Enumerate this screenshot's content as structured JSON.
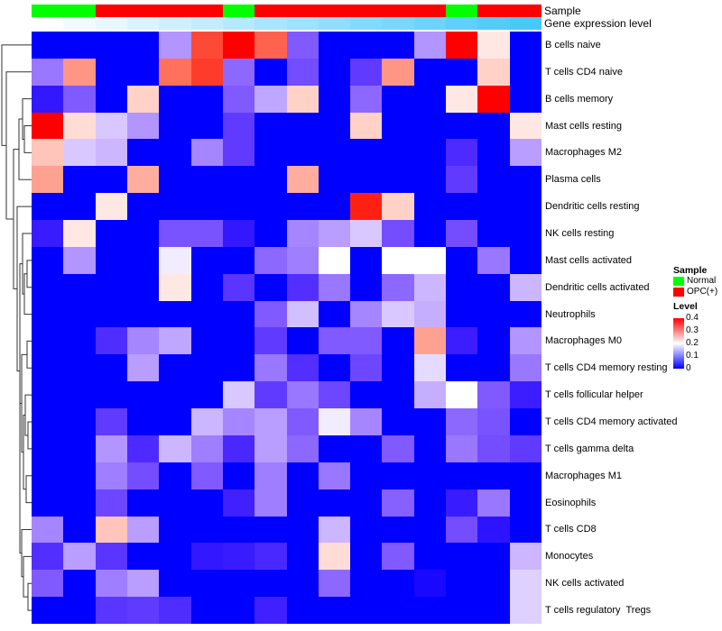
{
  "chart_data": {
    "type": "heatmap",
    "annotations": {
      "sample": {
        "label": "Sample",
        "values": [
          "Normal",
          "Normal",
          "OPC(+)",
          "OPC(+)",
          "OPC(+)",
          "OPC(+)",
          "Normal",
          "OPC(+)",
          "OPC(+)",
          "OPC(+)",
          "OPC(+)",
          "OPC(+)",
          "OPC(+)",
          "Normal",
          "OPC(+)",
          "OPC(+)"
        ]
      },
      "gene_expression": {
        "label": "Gene expression level",
        "relative_levels": [
          0,
          0.07,
          0.13,
          0.2,
          0.27,
          0.33,
          0.4,
          0.47,
          0.53,
          0.6,
          0.67,
          0.73,
          0.8,
          0.87,
          0.93,
          1.0
        ]
      }
    },
    "rows": [
      "B cells naive",
      "T cells CD4 naive",
      "B cells memory",
      "Mast cells resting",
      "Macrophages M2",
      "Plasma cells",
      "Dendritic cells resting",
      "NK cells resting",
      "Mast cells activated",
      "Dendritic cells activated",
      "Neutrophils",
      "Macrophages M0",
      "T cells CD4 memory resting",
      "T cells follicular helper",
      "T cells CD4 memory activated",
      "T cells gamma delta",
      "Macrophages M1",
      "Eosinophils",
      "T cells CD8",
      "Monocytes",
      "NK cells activated",
      "T cells regulatory  Tregs"
    ],
    "values": [
      [
        0,
        0,
        0,
        0,
        0.14,
        0.35,
        0.4,
        0.33,
        0.1,
        0,
        0,
        0,
        0.14,
        0.4,
        0.22,
        0
      ],
      [
        0.12,
        0.29,
        0,
        0,
        0.32,
        0.36,
        0.11,
        0,
        0.09,
        0,
        0.075,
        0.29,
        0,
        0,
        0.24,
        0
      ],
      [
        0.04,
        0.1,
        0,
        0.24,
        0,
        0,
        0.1,
        0.15,
        0.24,
        0,
        0.11,
        0,
        0,
        0.22,
        0.4,
        0
      ],
      [
        0.4,
        0.23,
        0.17,
        0.14,
        0,
        0,
        0.075,
        0,
        0,
        0,
        0.24,
        0,
        0,
        0,
        0,
        0.22
      ],
      [
        0.25,
        0.17,
        0.16,
        0,
        0,
        0.13,
        0.075,
        0,
        0,
        0,
        0,
        0,
        0,
        0.06,
        0,
        0.145
      ],
      [
        0.28,
        0,
        0,
        0.27,
        0,
        0,
        0,
        0,
        0.27,
        0,
        0,
        0,
        0,
        0.075,
        0,
        0
      ],
      [
        0,
        0,
        0.22,
        0,
        0,
        0,
        0,
        0,
        0,
        0,
        0.38,
        0.24,
        0,
        0,
        0,
        0
      ],
      [
        0.045,
        0.22,
        0,
        0,
        0.095,
        0.095,
        0.04,
        0,
        0.13,
        0.145,
        0.17,
        0.09,
        0,
        0.09,
        0,
        0
      ],
      [
        0,
        0.14,
        0,
        0,
        0.19,
        0,
        0,
        0.11,
        0.125,
        0.2,
        0,
        0.2,
        0.2,
        0,
        0.12,
        0
      ],
      [
        0,
        0,
        0,
        0,
        0.22,
        0,
        0.07,
        0,
        0.065,
        0.12,
        0,
        0.11,
        0.16,
        0,
        0,
        0.16
      ],
      [
        0,
        0,
        0,
        0,
        0,
        0,
        0,
        0.1,
        0.165,
        0,
        0.13,
        0.17,
        0.155,
        0,
        0,
        0
      ],
      [
        0,
        0,
        0.063,
        0.13,
        0.15,
        0,
        0,
        0.075,
        0,
        0.1,
        0.1,
        0,
        0.28,
        0.047,
        0,
        0.14
      ],
      [
        0,
        0,
        0,
        0.145,
        0,
        0,
        0,
        0.12,
        0.065,
        0,
        0.085,
        0,
        0.18,
        0,
        0,
        0.12
      ],
      [
        0,
        0,
        0,
        0,
        0,
        0,
        0.17,
        0.075,
        0.12,
        0.085,
        0,
        0,
        0.155,
        0.2,
        0.1,
        0.047
      ],
      [
        0,
        0,
        0.075,
        0,
        0,
        0.16,
        0.13,
        0.145,
        0.1,
        0.19,
        0.13,
        0,
        0,
        0.11,
        0.095,
        0
      ],
      [
        0,
        0,
        0.14,
        0.06,
        0.16,
        0.125,
        0.057,
        0.145,
        0.11,
        0,
        0,
        0.1,
        0,
        0.12,
        0.09,
        0.075
      ],
      [
        0,
        0,
        0.125,
        0.09,
        0,
        0.1,
        0,
        0.125,
        0,
        0.12,
        0,
        0,
        0,
        0,
        0,
        0
      ],
      [
        0,
        0,
        0.085,
        0,
        0,
        0,
        0.05,
        0.125,
        0,
        0,
        0,
        0.105,
        0,
        0.045,
        0.12,
        0
      ],
      [
        0.13,
        0,
        0.25,
        0.145,
        0,
        0,
        0,
        0,
        0,
        0.16,
        0,
        0,
        0,
        0.09,
        0.035,
        0
      ],
      [
        0.065,
        0.145,
        0.07,
        0,
        0,
        0.04,
        0.045,
        0.057,
        0,
        0.23,
        0,
        0.1,
        0,
        0,
        0,
        0.16
      ],
      [
        0.1,
        0,
        0.125,
        0.145,
        0,
        0,
        0,
        0,
        0,
        0.11,
        0,
        0,
        0.02,
        0,
        0,
        0.175
      ],
      [
        0,
        0,
        0.07,
        0.075,
        0.063,
        0,
        0,
        0.05,
        0,
        0,
        0,
        0,
        0,
        0,
        0,
        0.175
      ]
    ],
    "color_scale": {
      "min": 0,
      "mid": 0.2,
      "max": 0.4,
      "low_color": "#0000ff",
      "mid_color": "#ffffff",
      "high_color": "#ff0000"
    },
    "legend": {
      "sample_title": "Sample",
      "sample_items": [
        {
          "label": "Normal",
          "color": "#00ff00"
        },
        {
          "label": "OPC(+)",
          "color": "#ff0000"
        }
      ],
      "level_title": "Level",
      "level_ticks": [
        "0.4",
        "0.3",
        "0.2",
        "0.1",
        "0"
      ],
      "placement": "right"
    },
    "gene_expression_colors": {
      "low": "#ffffff",
      "high": "#48c8f8"
    }
  }
}
